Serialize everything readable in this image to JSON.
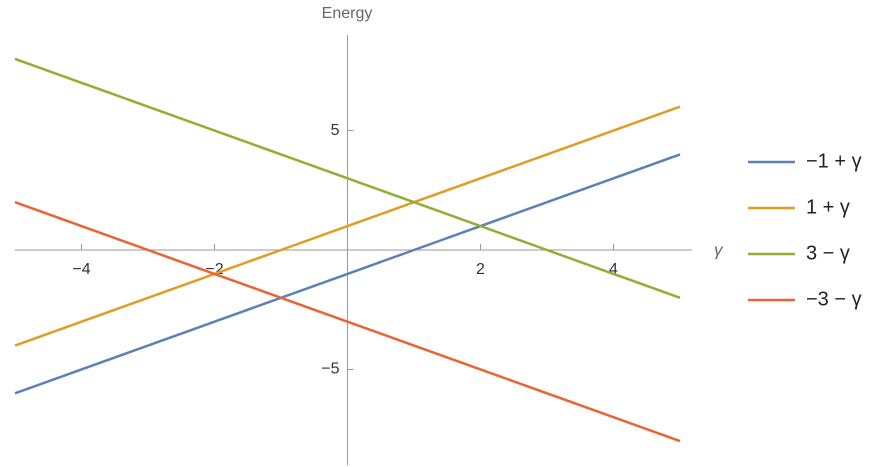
{
  "chart_data": {
    "type": "line",
    "y_label": "Energy",
    "x_label": "γ",
    "x": [
      -5,
      -4,
      -3,
      -2,
      -1,
      0,
      1,
      2,
      3,
      4,
      5
    ],
    "series": [
      {
        "name": "−1 + γ",
        "color": "#5e81b5",
        "values": [
          -6,
          -5,
          -4,
          -3,
          -2,
          -1,
          0,
          1,
          2,
          3,
          4
        ]
      },
      {
        "name": "1 + γ",
        "color": "#e19c24",
        "values": [
          -4,
          -3,
          -2,
          -1,
          0,
          1,
          2,
          3,
          4,
          5,
          6
        ]
      },
      {
        "name": "3 − γ",
        "color": "#8fb032",
        "values": [
          8,
          7,
          6,
          5,
          4,
          3,
          2,
          1,
          0,
          -1,
          -2
        ]
      },
      {
        "name": "−3 − γ",
        "color": "#eb6235",
        "values": [
          2,
          1,
          0,
          -1,
          -2,
          -3,
          -4,
          -5,
          -6,
          -7,
          -8
        ]
      }
    ],
    "xlim": [
      -5,
      5
    ],
    "ylim": [
      -9,
      9
    ],
    "xticks": [
      {
        "value": -4,
        "label": "−4"
      },
      {
        "value": -2,
        "label": "−2"
      },
      2,
      4
    ],
    "yticks": [
      {
        "value": -5,
        "label": "−5"
      },
      5
    ]
  }
}
